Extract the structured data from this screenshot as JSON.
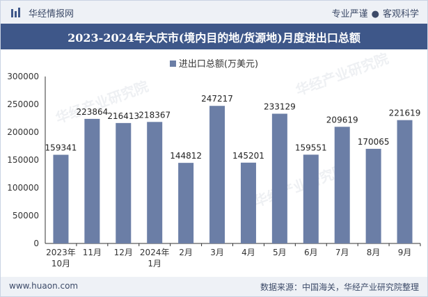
{
  "header": {
    "brand": "华经情报网",
    "tag1": "专业严谨",
    "separator": "●",
    "tag2": "客观科学",
    "logo_icon": "bar-logo-icon"
  },
  "colors": {
    "bar": "#6b7ea6",
    "title_bg": "#3e5789",
    "bar_bg": "#eef1f6"
  },
  "watermark": {
    "text": "华经产业研究院",
    "url": "www.huaon.com"
  },
  "chart_data": {
    "type": "bar",
    "title": "2023-2024年大庆市(境内目的地/货源地)月度进出口总额",
    "legend": [
      "进出口总额(万美元)"
    ],
    "categories": [
      [
        "2023年",
        "10月"
      ],
      [
        "11月"
      ],
      [
        "12月"
      ],
      [
        "2024年",
        "1月"
      ],
      [
        "2月"
      ],
      [
        "3月"
      ],
      [
        "4月"
      ],
      [
        "5月"
      ],
      [
        "6月"
      ],
      [
        "7月"
      ],
      [
        "8月"
      ],
      [
        "9月"
      ]
    ],
    "values": [
      159341,
      223864,
      216413,
      218367,
      144812,
      247217,
      145201,
      233129,
      159551,
      209619,
      170065,
      221619
    ],
    "yticks": [
      0,
      50000,
      100000,
      150000,
      200000,
      250000,
      300000
    ],
    "ylim": [
      0,
      300000
    ],
    "xlabel": "",
    "ylabel": ""
  },
  "footer": {
    "website": "www.huaon.com",
    "source": "数据来源：中国海关，华经产业研究院整理"
  }
}
